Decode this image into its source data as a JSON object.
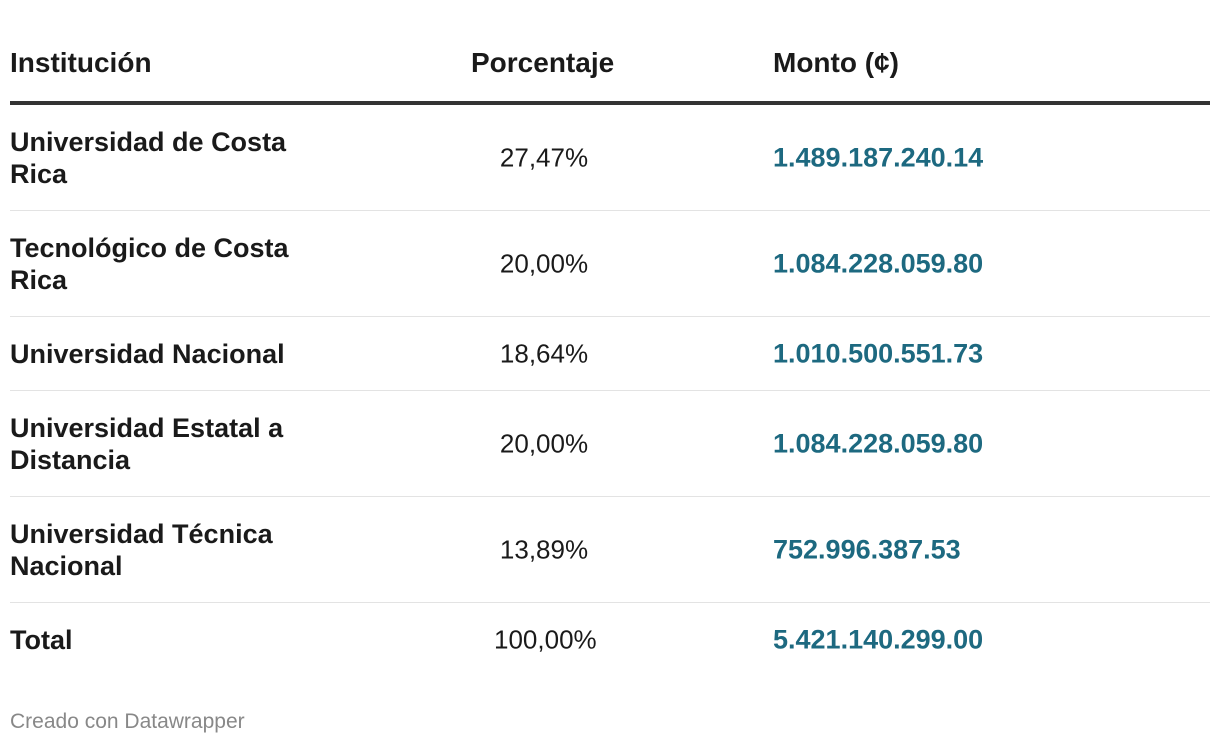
{
  "chart_data": {
    "type": "table",
    "columns": [
      "Institución",
      "Porcentaje",
      "Monto (¢)"
    ],
    "rows": [
      {
        "institucion": "Universidad de Costa Rica",
        "porcentaje": "27,47%",
        "monto": "1.489.187.240.14"
      },
      {
        "institucion": "Tecnológico de Costa Rica",
        "porcentaje": "20,00%",
        "monto": "1.084.228.059.80"
      },
      {
        "institucion": "Universidad Nacional",
        "porcentaje": "18,64%",
        "monto": "1.010.500.551.73"
      },
      {
        "institucion": "Universidad Estatal a Distancia",
        "porcentaje": "20,00%",
        "monto": "1.084.228.059.80"
      },
      {
        "institucion": "Universidad Técnica Nacional",
        "porcentaje": "13,89%",
        "monto": "752.996.387.53"
      },
      {
        "institucion": "Total",
        "porcentaje": "100,00%",
        "monto": "5.421.140.299.00"
      }
    ],
    "footer": "Creado con Datawrapper",
    "accent_color": "#1d6980"
  }
}
